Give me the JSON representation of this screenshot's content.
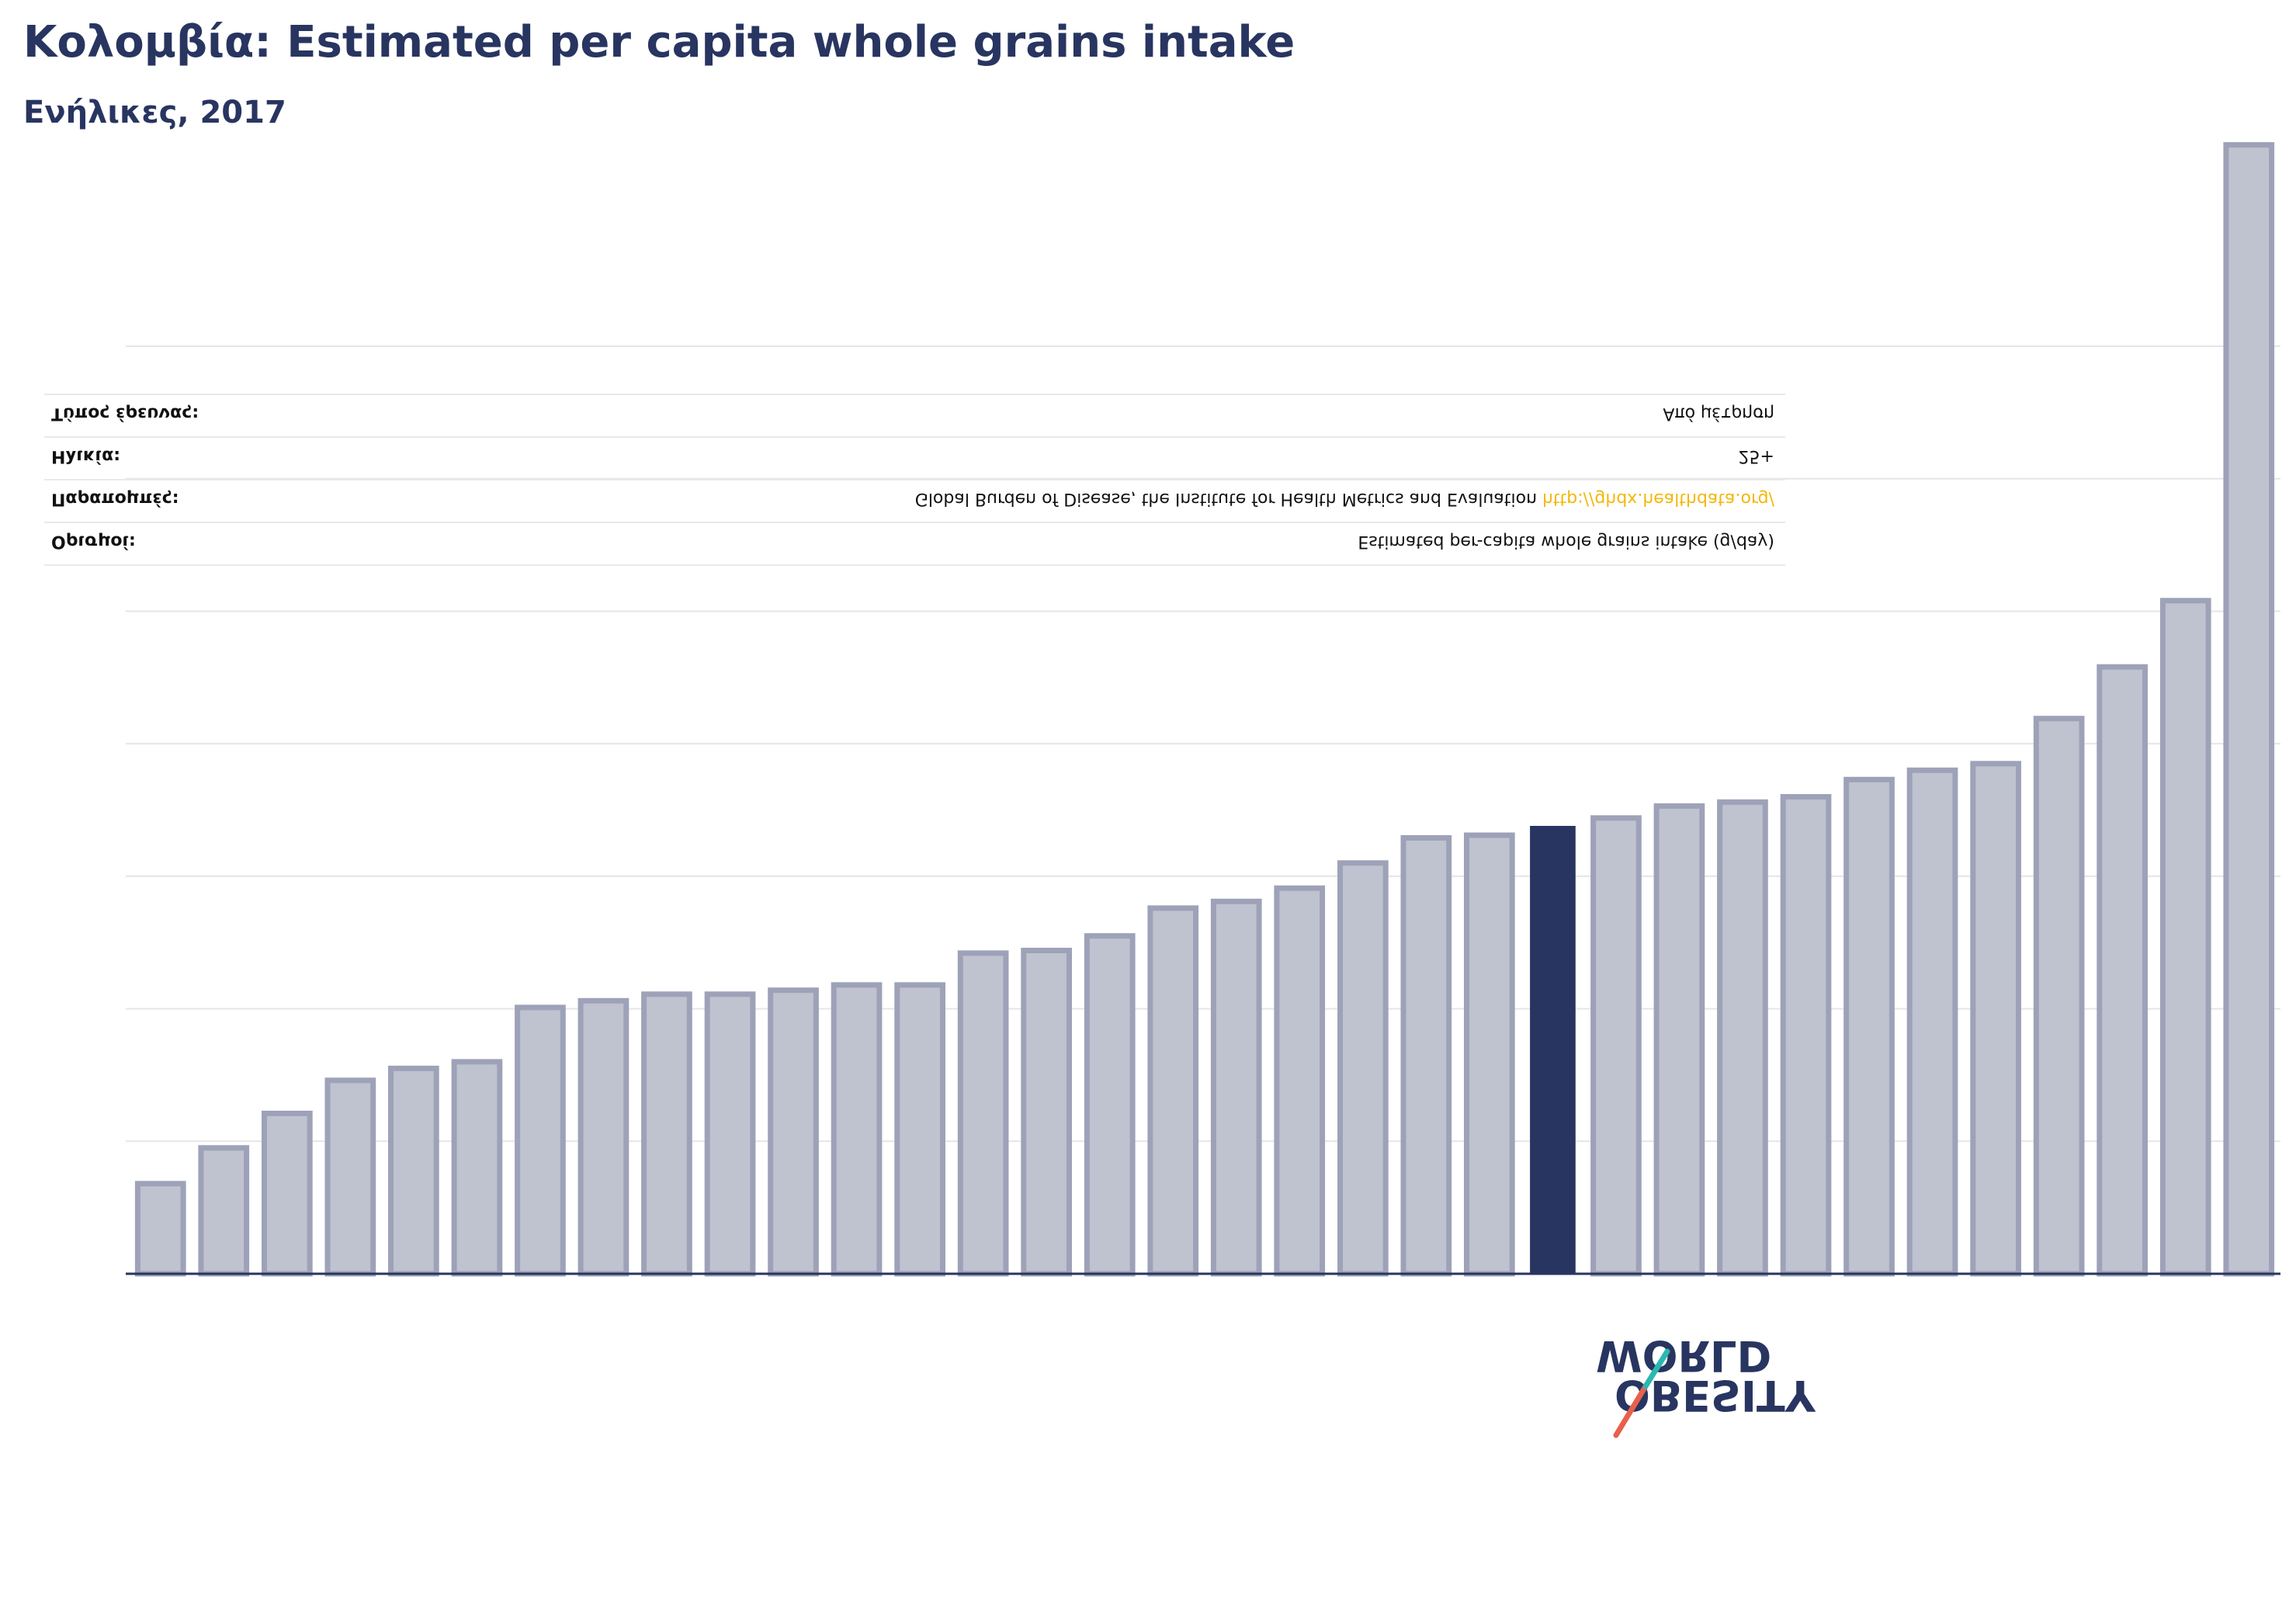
{
  "header": {
    "title": "Κολομβία: Estimated per capita whole grains intake",
    "subtitle": "Ενήλικες, 2017"
  },
  "info": {
    "rows": [
      {
        "label": "Ορισμοί:",
        "value": "Estimated per-capita whole grains intake (g/day)",
        "link": ""
      },
      {
        "label": "Παραπομπές:",
        "value": "Global Burden of Disease, the Institute for Health Metrics and Evaluation ",
        "link": "http://ghdx.healthdata.org/"
      },
      {
        "label": "Ηλικία:",
        "value": "25+",
        "link": ""
      },
      {
        "label": "Τύπος έρευνας:",
        "value": "Από μέτρηση",
        "link": ""
      }
    ]
  },
  "logo": {
    "line1": "OBESITY",
    "line2": "WORLD"
  },
  "colors": {
    "highlight": "#283560",
    "bar_fill": "#bfc2cf",
    "bar_stroke": "#9ea2b8",
    "axis": "#283560",
    "grid": "#e6e6e6",
    "logo_red": "#e8604c",
    "logo_teal": "#2ab8b0"
  },
  "chart_data": {
    "type": "bar",
    "title": "Κολομβία: Estimated per capita whole grains intake",
    "subtitle": "Ενήλικες, 2017",
    "ylim": [
      0,
      8.5
    ],
    "gridlines": [
      1,
      2,
      3,
      4,
      5,
      6,
      7
    ],
    "grid": true,
    "highlight_index": 22,
    "highlight_label": "Κολομβία",
    "values": [
      0.68,
      0.95,
      1.21,
      1.46,
      1.55,
      1.6,
      2.01,
      2.06,
      2.11,
      2.11,
      2.14,
      2.18,
      2.18,
      2.42,
      2.44,
      2.55,
      2.76,
      2.81,
      2.91,
      3.1,
      3.29,
      3.31,
      3.38,
      3.44,
      3.53,
      3.56,
      3.6,
      3.73,
      3.8,
      3.85,
      4.19,
      4.58,
      5.08,
      8.52
    ]
  }
}
